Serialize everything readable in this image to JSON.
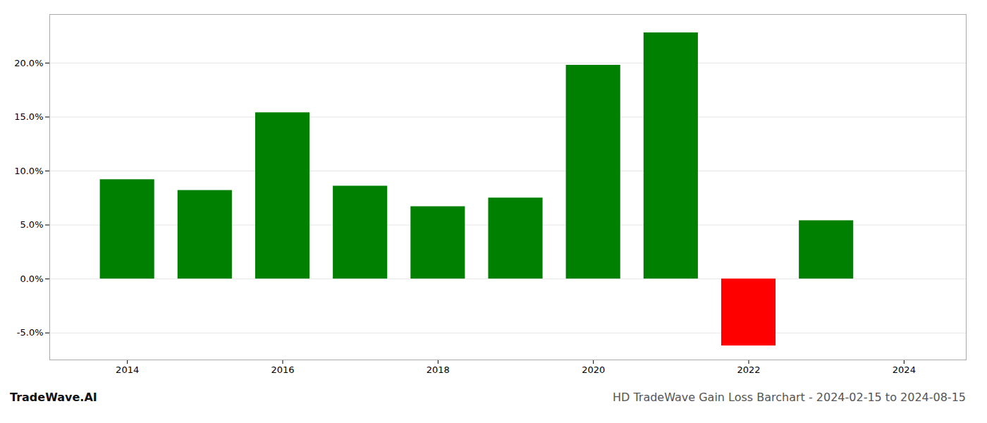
{
  "chart_data": {
    "type": "bar",
    "title": "HD TradeWave Gain Loss Barchart - 2024-02-15 to 2024-08-15",
    "annotations": [
      "TradeWave.AI"
    ],
    "x": [
      2014,
      2015,
      2016,
      2017,
      2018,
      2019,
      2020,
      2021,
      2022,
      2023
    ],
    "values": [
      0.092,
      0.082,
      0.154,
      0.086,
      0.067,
      0.075,
      0.198,
      0.228,
      -0.062,
      0.054
    ],
    "colors": [
      "#008000",
      "#008000",
      "#008000",
      "#008000",
      "#008000",
      "#008000",
      "#008000",
      "#008000",
      "#ff0000",
      "#008000"
    ],
    "xlim": [
      2013.0,
      2024.8
    ],
    "xticks": [
      2014,
      2016,
      2018,
      2020,
      2022,
      2024
    ],
    "ylim": [
      -0.075,
      0.245
    ],
    "yticks": [
      {
        "value": -0.05,
        "label": "-5.0%"
      },
      {
        "value": 0.0,
        "label": "0.0%"
      },
      {
        "value": 0.05,
        "label": "5.0%"
      },
      {
        "value": 0.1,
        "label": "10.0%"
      },
      {
        "value": 0.15,
        "label": "15.0%"
      },
      {
        "value": 0.2,
        "label": "20.0%"
      }
    ],
    "grid": true
  }
}
